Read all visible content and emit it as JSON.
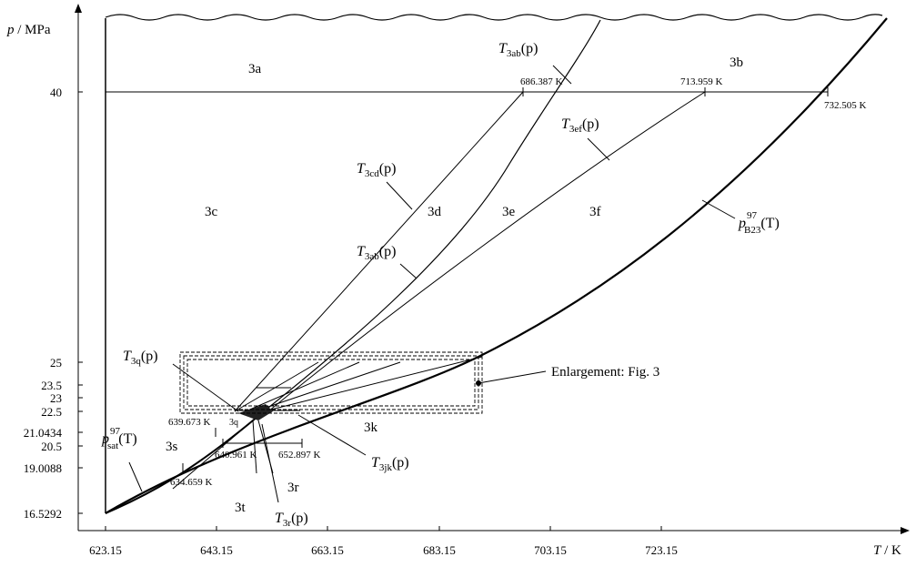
{
  "axes": {
    "y_label_var": "p",
    "y_label_unit": " / MPa",
    "x_label_var": "T",
    "x_label_unit": " / K",
    "x_ticks": [
      "623.15",
      "643.15",
      "663.15",
      "683.15",
      "703.15",
      "723.15"
    ],
    "y_ticks": [
      "40",
      "25",
      "23.5",
      "23",
      "22.5",
      "21.0434",
      "20.5",
      "19.0088",
      "16.5292"
    ]
  },
  "regions": {
    "r3a": "3a",
    "r3b": "3b",
    "r3c": "3c",
    "r3d": "3d",
    "r3e": "3e",
    "r3f": "3f",
    "r3k": "3k",
    "r3s": "3s",
    "r3t": "3t",
    "r3r": "3r",
    "r3q": "3q"
  },
  "points": {
    "p686": "686.387 K",
    "p713": "713.959 K",
    "p732": "732.505 K",
    "p639": "639.673 K",
    "p640": "640.961 K",
    "p652": "652.897 K",
    "p634": "634.659 K"
  },
  "curves": {
    "ab_top": {
      "main": "T",
      "sub": "3ab",
      "arg": "(p)"
    },
    "ab_mid": {
      "main": "T",
      "sub": "3ab",
      "arg": "(p)"
    },
    "cd": {
      "main": "T",
      "sub": "3cd",
      "arg": "(p)"
    },
    "ef": {
      "main": "T",
      "sub": "3ef",
      "arg": "(p)"
    },
    "q": {
      "main": "T",
      "sub": "3q",
      "arg": "(p)"
    },
    "jk": {
      "main": "T",
      "sub": "3jk",
      "arg": "(p)"
    },
    "r": {
      "main": "T",
      "sub": "3r",
      "arg": "(p)"
    },
    "b23": {
      "main": "p",
      "sup": "97",
      "sub": "B23",
      "arg": "(T)"
    },
    "sat": {
      "main": "p",
      "sup": "97",
      "sub": "sat",
      "arg": "(T)"
    }
  },
  "enlargement_label": "Enlargement: Fig. 3"
}
